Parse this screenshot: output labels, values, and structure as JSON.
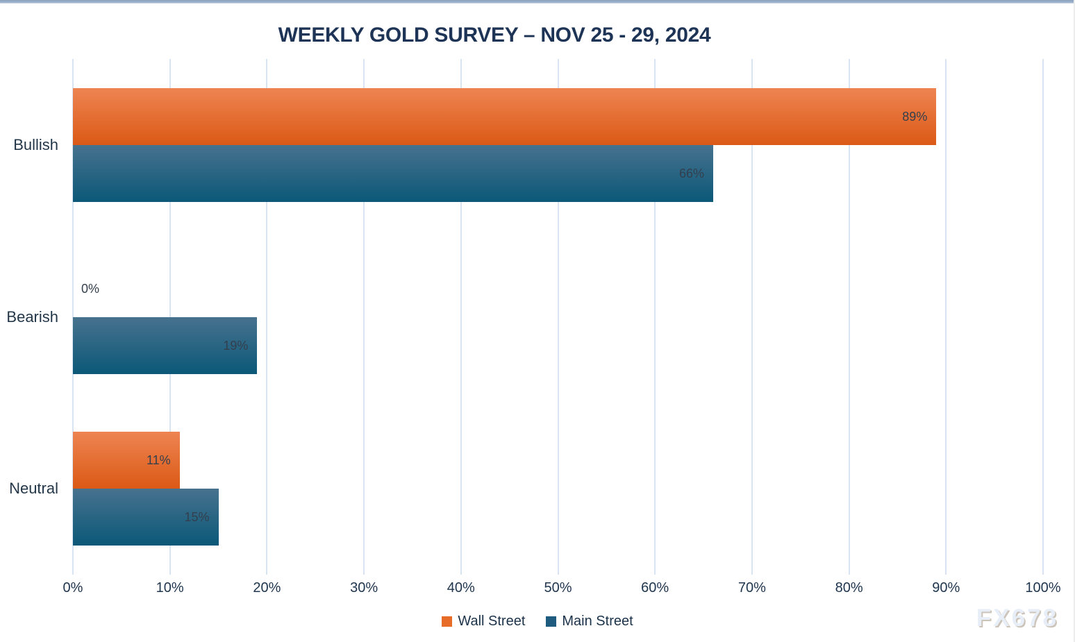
{
  "title": "WEEKLY GOLD SURVEY – NOV 25 - 29, 2024",
  "watermark": "FX678",
  "chart_data": {
    "type": "bar",
    "orientation": "horizontal",
    "title": "WEEKLY GOLD SURVEY – NOV 25 - 29, 2024",
    "categories": [
      "Bullish",
      "Bearish",
      "Neutral"
    ],
    "series": [
      {
        "name": "Wall Street",
        "values": [
          89,
          0,
          11
        ],
        "value_labels": [
          "89%",
          "0%",
          "11%"
        ],
        "bar_color_top": "#ee8452",
        "bar_color_bottom": "#db5915",
        "legend_color": "#e66c28"
      },
      {
        "name": "Main Street",
        "values": [
          66,
          19,
          15
        ],
        "value_labels": [
          "66%",
          "19%",
          "15%"
        ],
        "bar_color_top": "#47728e",
        "bar_color_bottom": "#0b5878",
        "legend_color": "#1e5b7e"
      }
    ],
    "xlim": [
      0,
      100
    ],
    "x_tick_labels": [
      "0%",
      "10%",
      "20%",
      "30%",
      "40%",
      "50%",
      "60%",
      "70%",
      "80%",
      "90%",
      "100%"
    ],
    "grid": true,
    "gridline_color": "#d8e4f1",
    "value_label_color": "#333f4d",
    "legend_position": "bottom"
  }
}
